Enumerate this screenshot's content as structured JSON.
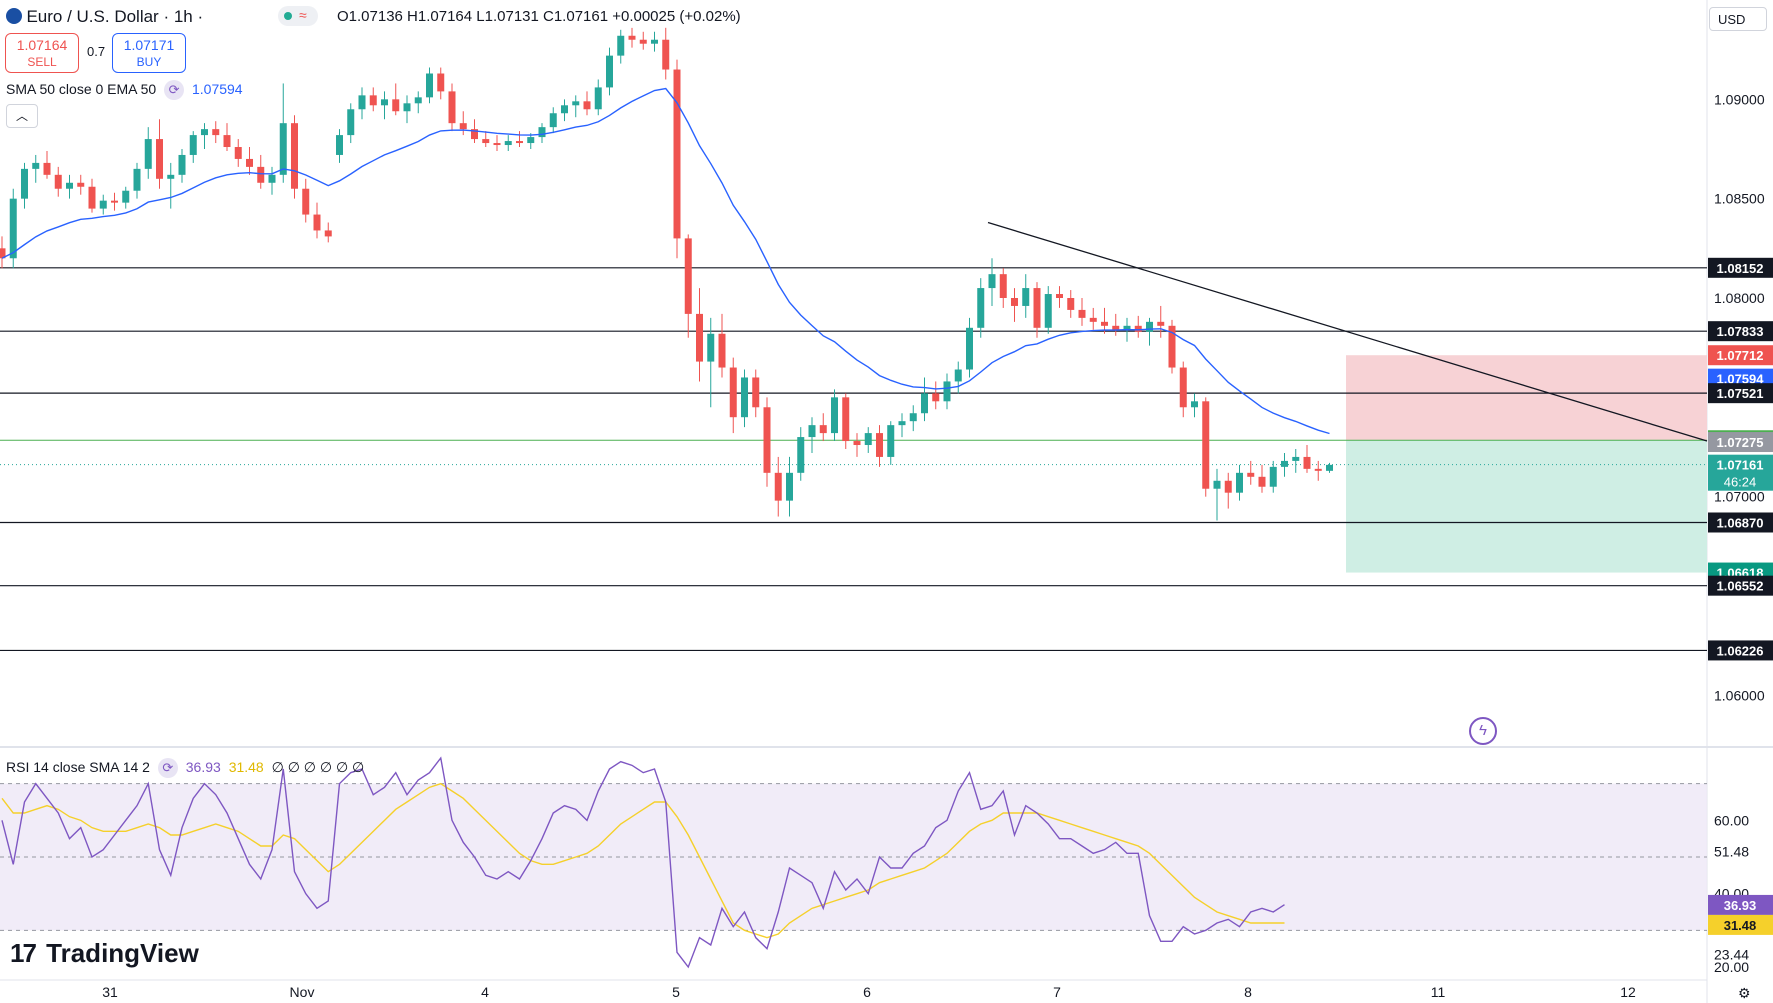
{
  "header": {
    "symbol": "Euro / U.S. Dollar · 1h ·",
    "ohlc": "O1.07136 H1.07164 L1.07131 C1.07161 +0.00025 (+0.02%)",
    "sell_price": "1.07164",
    "sell_label": "SELL",
    "spread": "0.7",
    "buy_price": "1.07171",
    "buy_label": "BUY",
    "indicator": "SMA 50 close 0 EMA 50",
    "indicator_value": "1.07594",
    "currency": "USD",
    "collapse_icon": "chevron-up-icon"
  },
  "rsi": {
    "label": "RSI 14 close SMA 14 2",
    "value": "36.93",
    "sma_value": "31.48",
    "extra": "∅ ∅ ∅ ∅ ∅ ∅"
  },
  "brand": "TradingView",
  "colors": {
    "up": "#26a69a",
    "down": "#ef5350",
    "sma": "#2962ff",
    "rsi": "#7e57c2",
    "rsi_sma": "#f5d02b",
    "price_tag": "#26a69a",
    "stop_zone": "#f7d2d5",
    "target_zone": "#cfeee4"
  },
  "chart_data": {
    "type": "candlestick",
    "symbol": "EUR/USD",
    "timeframe": "1h",
    "x_tick_labels": [
      "31",
      "Nov",
      "4",
      "5",
      "6",
      "7",
      "8",
      "11",
      "12"
    ],
    "y_tick_labels": [
      "1.09000",
      "1.08500",
      "1.08000",
      "1.07000",
      "1.06000"
    ],
    "ylim": [
      1.0575,
      1.095
    ],
    "price_levels": [
      {
        "value": "1.08152",
        "style": "dark"
      },
      {
        "value": "1.07833",
        "style": "dark"
      },
      {
        "value": "1.07712",
        "style": "red"
      },
      {
        "value": "1.07594",
        "style": "blue"
      },
      {
        "value": "1.07521",
        "style": "dark"
      },
      {
        "value": "1.07284",
        "style": "green"
      },
      {
        "value": "1.07275",
        "style": "gray"
      },
      {
        "value": "1.07161",
        "style": "current"
      },
      {
        "value": "1.06870",
        "style": "dark"
      },
      {
        "value": "1.06618",
        "style": "teal"
      },
      {
        "value": "1.06552",
        "style": "dark"
      },
      {
        "value": "1.06226",
        "style": "dark"
      }
    ],
    "countdown": "46:24",
    "horizontal_lines": [
      1.08152,
      1.07833,
      1.07521,
      1.0687,
      1.06552,
      1.06226
    ],
    "position": {
      "entry": 1.07284,
      "stop": 1.07712,
      "target": 1.06618
    },
    "trendline": [
      [
        1.0838,
        0.58
      ],
      [
        1.0728,
        1.0
      ]
    ],
    "candles": [
      [
        1.0825,
        1.0831,
        1.0815,
        1.082
      ],
      [
        1.082,
        1.0855,
        1.0815,
        1.085
      ],
      [
        1.085,
        1.0868,
        1.0845,
        1.0865
      ],
      [
        1.0865,
        1.0872,
        1.0858,
        1.0868
      ],
      [
        1.0868,
        1.0874,
        1.086,
        1.0862
      ],
      [
        1.0862,
        1.0866,
        1.0851,
        1.0855
      ],
      [
        1.0855,
        1.0862,
        1.085,
        1.0858
      ],
      [
        1.0858,
        1.0862,
        1.0852,
        1.0856
      ],
      [
        1.0856,
        1.086,
        1.0843,
        1.0845
      ],
      [
        1.0845,
        1.0852,
        1.0842,
        1.0849
      ],
      [
        1.0849,
        1.0853,
        1.0844,
        1.0848
      ],
      [
        1.0848,
        1.0856,
        1.0845,
        1.0854
      ],
      [
        1.0854,
        1.0868,
        1.085,
        1.0865
      ],
      [
        1.0865,
        1.0886,
        1.086,
        1.088
      ],
      [
        1.088,
        1.089,
        1.0855,
        1.086
      ],
      [
        1.086,
        1.0868,
        1.0845,
        1.0862
      ],
      [
        1.0862,
        1.0875,
        1.0858,
        1.0872
      ],
      [
        1.0872,
        1.0884,
        1.0868,
        1.0882
      ],
      [
        1.0882,
        1.0888,
        1.0875,
        1.0885
      ],
      [
        1.0885,
        1.0889,
        1.0878,
        1.0882
      ],
      [
        1.0882,
        1.0888,
        1.0874,
        1.0876
      ],
      [
        1.0876,
        1.088,
        1.0866,
        1.087
      ],
      [
        1.087,
        1.0876,
        1.0862,
        1.0866
      ],
      [
        1.0866,
        1.0872,
        1.0855,
        1.0858
      ],
      [
        1.0858,
        1.0866,
        1.0852,
        1.0862
      ],
      [
        1.0862,
        1.0908,
        1.0858,
        1.0888
      ],
      [
        1.0888,
        1.0892,
        1.085,
        1.0855
      ],
      [
        1.0855,
        1.086,
        1.0838,
        1.0842
      ],
      [
        1.0842,
        1.0848,
        1.083,
        1.0834
      ],
      [
        1.0834,
        1.0838,
        1.0828,
        1.0831
      ],
      [
        1.0872,
        1.0885,
        1.0868,
        1.0882
      ],
      [
        1.0882,
        1.0898,
        1.0878,
        1.0895
      ],
      [
        1.0895,
        1.0906,
        1.089,
        1.0902
      ],
      [
        1.0902,
        1.0906,
        1.0894,
        1.0897
      ],
      [
        1.0897,
        1.0904,
        1.089,
        1.09
      ],
      [
        1.09,
        1.0908,
        1.0892,
        1.0894
      ],
      [
        1.0894,
        1.0902,
        1.0888,
        1.0898
      ],
      [
        1.0898,
        1.0904,
        1.0893,
        1.0901
      ],
      [
        1.0901,
        1.0916,
        1.0898,
        1.0913
      ],
      [
        1.0913,
        1.0916,
        1.09,
        1.0904
      ],
      [
        1.0904,
        1.0908,
        1.0884,
        1.0888
      ],
      [
        1.0888,
        1.0894,
        1.0882,
        1.0885
      ],
      [
        1.0885,
        1.089,
        1.0878,
        1.088
      ],
      [
        1.088,
        1.0884,
        1.0876,
        1.0878
      ],
      [
        1.0878,
        1.0882,
        1.0874,
        1.0877
      ],
      [
        1.0877,
        1.0882,
        1.0874,
        1.0879
      ],
      [
        1.0879,
        1.0884,
        1.0876,
        1.0878
      ],
      [
        1.0878,
        1.0883,
        1.0875,
        1.0881
      ],
      [
        1.0881,
        1.0888,
        1.0878,
        1.0886
      ],
      [
        1.0886,
        1.0896,
        1.0883,
        1.0893
      ],
      [
        1.0893,
        1.09,
        1.0889,
        1.0897
      ],
      [
        1.0897,
        1.0902,
        1.0891,
        1.0899
      ],
      [
        1.0899,
        1.0904,
        1.0892,
        1.0895
      ],
      [
        1.0895,
        1.091,
        1.0892,
        1.0906
      ],
      [
        1.0906,
        1.0926,
        1.0902,
        1.0922
      ],
      [
        1.0922,
        1.0935,
        1.0918,
        1.0932
      ],
      [
        1.0932,
        1.0936,
        1.0926,
        1.093
      ],
      [
        1.093,
        1.0934,
        1.0925,
        1.0928
      ],
      [
        1.0928,
        1.0934,
        1.0924,
        1.093
      ],
      [
        1.093,
        1.0936,
        1.091,
        1.0915
      ],
      [
        1.0915,
        1.092,
        1.082,
        1.083
      ],
      [
        1.083,
        1.0832,
        1.078,
        1.0792
      ],
      [
        1.0792,
        1.0805,
        1.0758,
        1.0768
      ],
      [
        1.0768,
        1.079,
        1.0745,
        1.0782
      ],
      [
        1.0782,
        1.0792,
        1.076,
        1.0765
      ],
      [
        1.0765,
        1.077,
        1.0732,
        1.074
      ],
      [
        1.074,
        1.0764,
        1.0735,
        1.076
      ],
      [
        1.076,
        1.0764,
        1.074,
        1.0745
      ],
      [
        1.0745,
        1.075,
        1.0705,
        1.0712
      ],
      [
        1.0712,
        1.072,
        1.069,
        1.0698
      ],
      [
        1.0698,
        1.072,
        1.069,
        1.0712
      ],
      [
        1.0712,
        1.0735,
        1.0708,
        1.073
      ],
      [
        1.073,
        1.074,
        1.0722,
        1.0736
      ],
      [
        1.0736,
        1.0742,
        1.0728,
        1.0732
      ],
      [
        1.0732,
        1.0754,
        1.0728,
        1.075
      ],
      [
        1.075,
        1.0752,
        1.0724,
        1.0728
      ],
      [
        1.0728,
        1.0732,
        1.072,
        1.0726
      ],
      [
        1.0726,
        1.0735,
        1.0722,
        1.0732
      ],
      [
        1.0732,
        1.0736,
        1.0715,
        1.072
      ],
      [
        1.072,
        1.0738,
        1.0716,
        1.0736
      ],
      [
        1.0736,
        1.0742,
        1.073,
        1.0738
      ],
      [
        1.0738,
        1.0746,
        1.0733,
        1.0742
      ],
      [
        1.0742,
        1.076,
        1.0738,
        1.0752
      ],
      [
        1.0752,
        1.0758,
        1.0744,
        1.0748
      ],
      [
        1.0748,
        1.0762,
        1.0744,
        1.0758
      ],
      [
        1.0758,
        1.0768,
        1.0752,
        1.0764
      ],
      [
        1.0764,
        1.079,
        1.076,
        1.0785
      ],
      [
        1.0785,
        1.081,
        1.078,
        1.0805
      ],
      [
        1.0805,
        1.082,
        1.0796,
        1.0812
      ],
      [
        1.0812,
        1.0815,
        1.0795,
        1.08
      ],
      [
        1.08,
        1.0805,
        1.0788,
        1.0796
      ],
      [
        1.0796,
        1.0812,
        1.079,
        1.0805
      ],
      [
        1.0805,
        1.0808,
        1.078,
        1.0785
      ],
      [
        1.0785,
        1.0806,
        1.0782,
        1.0802
      ],
      [
        1.0802,
        1.0806,
        1.0795,
        1.08
      ],
      [
        1.08,
        1.0804,
        1.079,
        1.0794
      ],
      [
        1.0794,
        1.08,
        1.0786,
        1.079
      ],
      [
        1.079,
        1.0795,
        1.0784,
        1.0788
      ],
      [
        1.0788,
        1.0795,
        1.0782,
        1.0786
      ],
      [
        1.0786,
        1.0792,
        1.0781,
        1.0784
      ],
      [
        1.0784,
        1.079,
        1.0778,
        1.0786
      ],
      [
        1.0786,
        1.0791,
        1.078,
        1.0783
      ],
      [
        1.0783,
        1.079,
        1.0776,
        1.0788
      ],
      [
        1.0788,
        1.0796,
        1.078,
        1.0786
      ],
      [
        1.0786,
        1.0789,
        1.0762,
        1.0765
      ],
      [
        1.0765,
        1.0768,
        1.074,
        1.0745
      ],
      [
        1.0745,
        1.0752,
        1.074,
        1.0748
      ],
      [
        1.0748,
        1.075,
        1.07,
        1.0704
      ],
      [
        1.0704,
        1.0714,
        1.0688,
        1.0708
      ],
      [
        1.0708,
        1.0712,
        1.0694,
        1.0702
      ],
      [
        1.0702,
        1.0716,
        1.0698,
        1.0712
      ],
      [
        1.0712,
        1.0718,
        1.0706,
        1.071
      ],
      [
        1.071,
        1.0716,
        1.0702,
        1.0705
      ],
      [
        1.0705,
        1.0718,
        1.0702,
        1.0715
      ],
      [
        1.0715,
        1.0722,
        1.071,
        1.0718
      ],
      [
        1.0718,
        1.0724,
        1.0712,
        1.072
      ],
      [
        1.072,
        1.0726,
        1.0712,
        1.0714
      ],
      [
        1.0714,
        1.0718,
        1.0708,
        1.0713
      ],
      [
        1.0713,
        1.0717,
        1.0712,
        1.0716
      ]
    ],
    "rsi_values": [
      60,
      48,
      65,
      70,
      66,
      62,
      55,
      58,
      50,
      52,
      56,
      60,
      64,
      70,
      52,
      45,
      58,
      66,
      70,
      67,
      62,
      55,
      48,
      44,
      52,
      74,
      46,
      40,
      36,
      38,
      70,
      73,
      74,
      67,
      69,
      73,
      67,
      71,
      73,
      77,
      60,
      54,
      50,
      45,
      44,
      46,
      44,
      49,
      55,
      62,
      64,
      63,
      60,
      68,
      74,
      76,
      75,
      73,
      74,
      65,
      24,
      20,
      28,
      26,
      36,
      31,
      35,
      28,
      25,
      35,
      47,
      45,
      43,
      36,
      46,
      41,
      44,
      40,
      50,
      47,
      47,
      51,
      53,
      58,
      60,
      68,
      73,
      63,
      64,
      68,
      56,
      64,
      62,
      59,
      55,
      55,
      53,
      51,
      52,
      54,
      51,
      51,
      34,
      27,
      27,
      31,
      29,
      30,
      32,
      33,
      31,
      35,
      36,
      35,
      37
    ],
    "rsi_sma_values": [
      66,
      62,
      62,
      63,
      64,
      63,
      61,
      60,
      58,
      57,
      57,
      57,
      58,
      59,
      58,
      56,
      56,
      57,
      58,
      59,
      58,
      57,
      55,
      53,
      53,
      56,
      55,
      52,
      49,
      46,
      48,
      51,
      54,
      57,
      60,
      63,
      65,
      67,
      69,
      70,
      68,
      66,
      63,
      60,
      57,
      54,
      51,
      49,
      48,
      48,
      49,
      50,
      51,
      53,
      56,
      59,
      61,
      63,
      65,
      65,
      61,
      56,
      50,
      44,
      38,
      32,
      30,
      29,
      28,
      29,
      32,
      34,
      36,
      37,
      38,
      39,
      40,
      41,
      43,
      44,
      45,
      46,
      47,
      49,
      51,
      54,
      57,
      59,
      60,
      62,
      62,
      62,
      62,
      61,
      60,
      59,
      58,
      57,
      56,
      55,
      54,
      53,
      51,
      48,
      45,
      42,
      39,
      37,
      35,
      34,
      33,
      32,
      32,
      32,
      32
    ],
    "rsi_ylim": [
      17,
      77
    ],
    "rsi_levels": [
      70,
      50,
      30
    ],
    "rsi_tick_labels": [
      "60.00",
      "51.48",
      "40.00",
      "23.44",
      "20.00"
    ]
  }
}
